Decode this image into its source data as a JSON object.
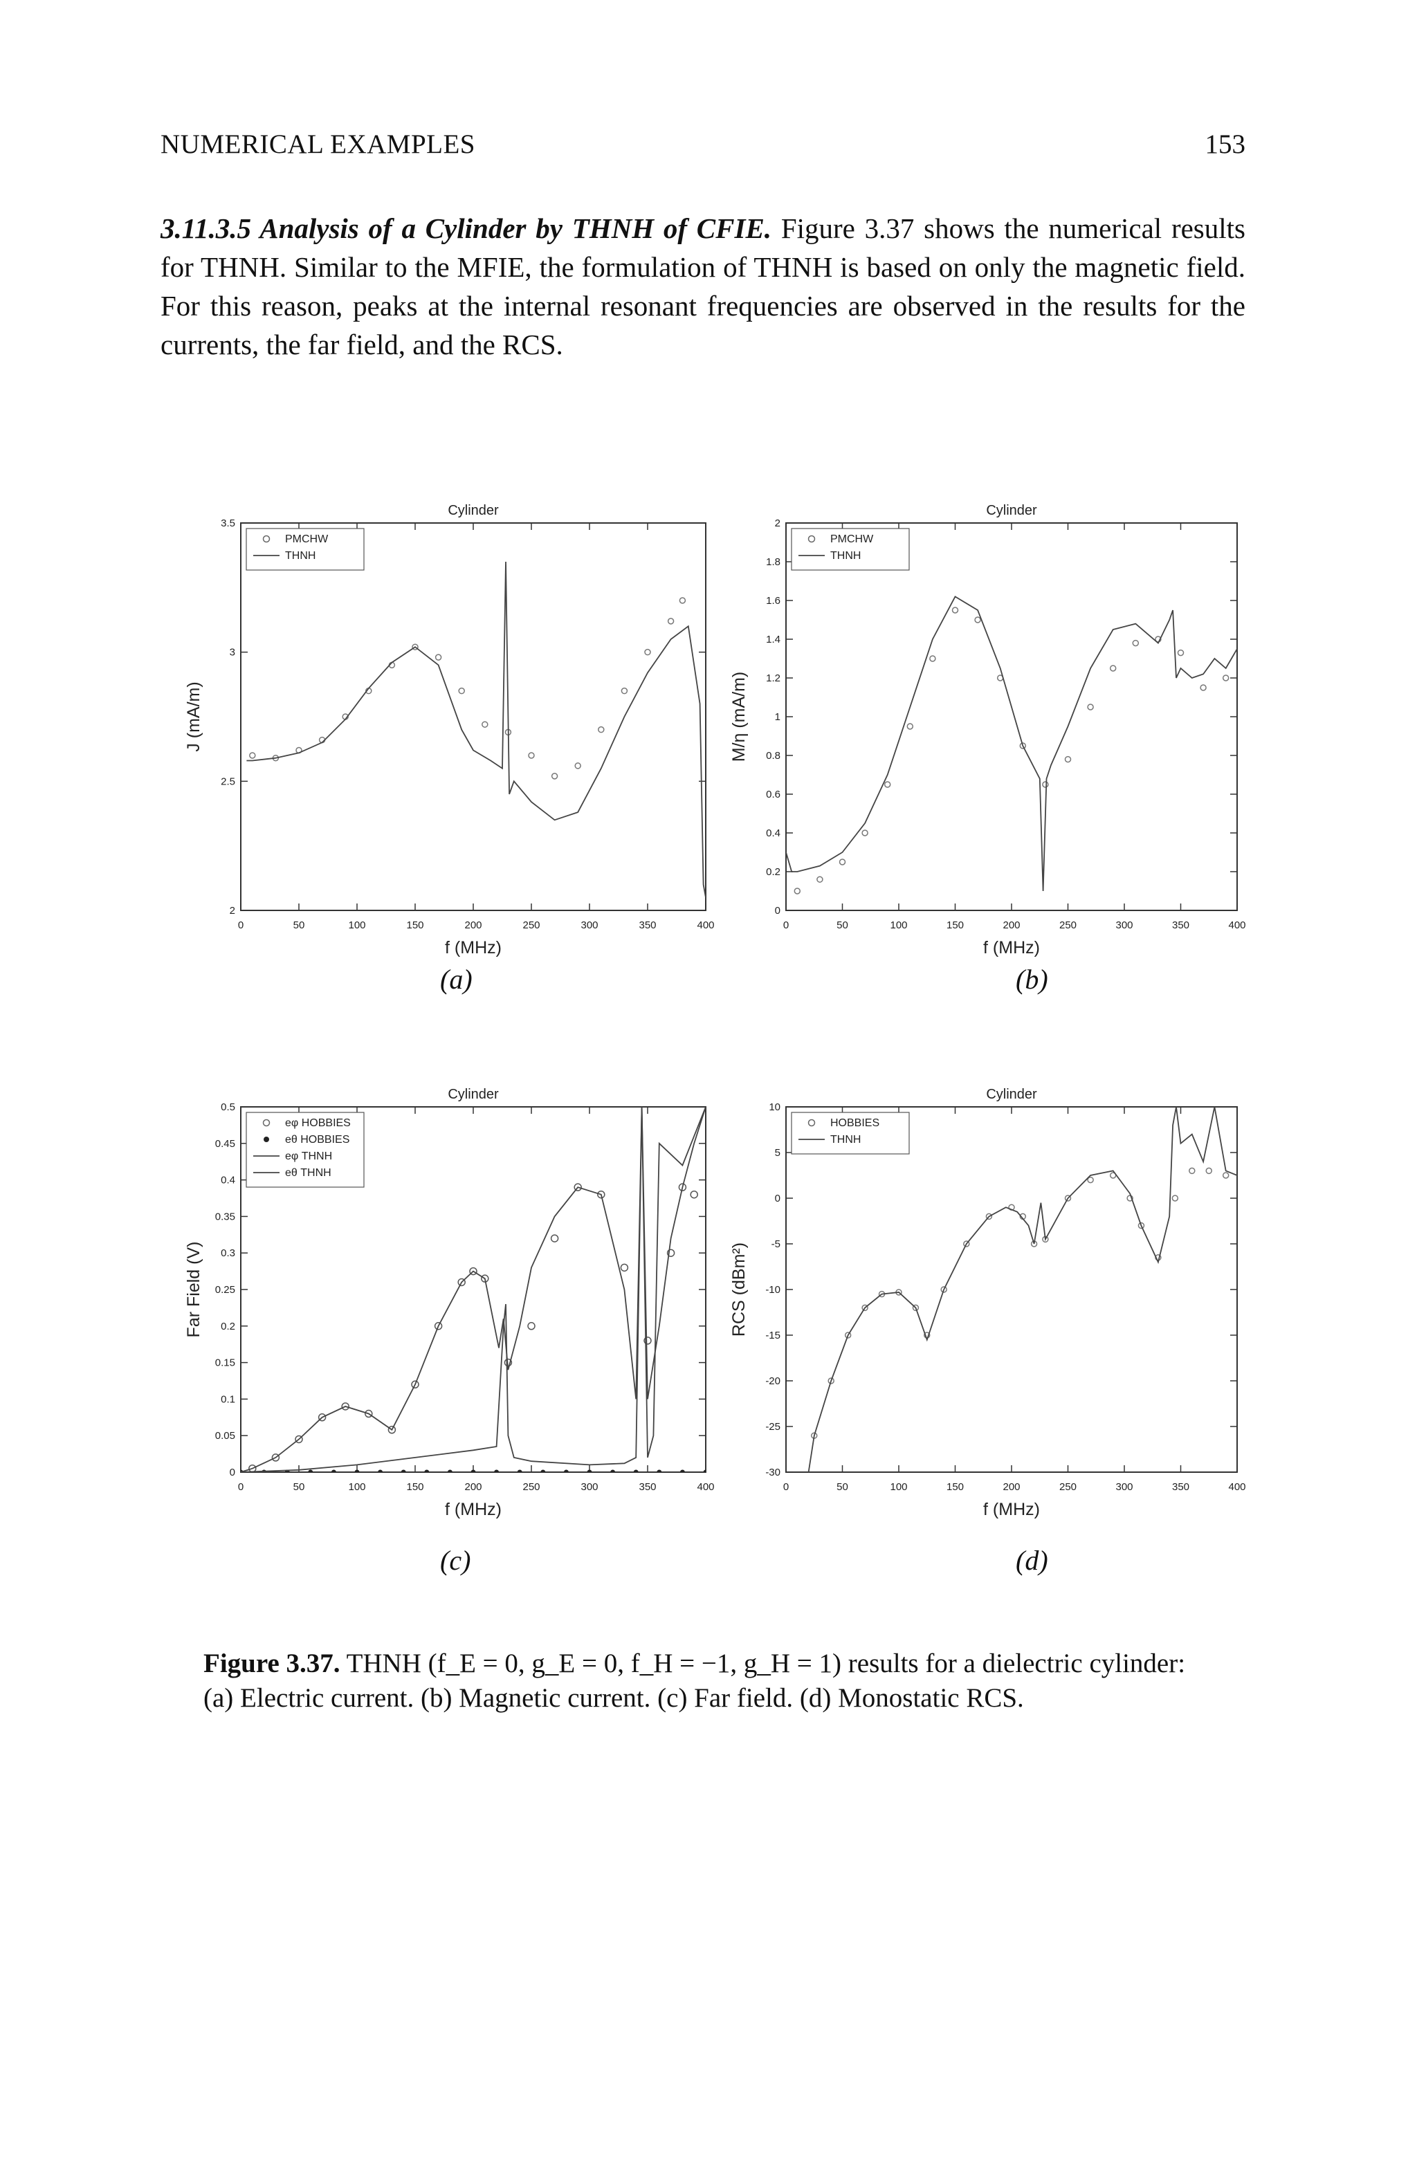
{
  "header": {
    "left": "NUMERICAL EXAMPLES",
    "page_number": "153"
  },
  "section": {
    "heading": "3.11.3.5 Analysis of a Cylinder by THNH of CFIE.",
    "body": "Figure 3.37 shows the numerical results for THNH. Similar to the MFIE, the formulation of THNH is based on only the magnetic field. For this reason, peaks at the internal resonant frequencies are observed in the results for the currents, the far field, and the RCS."
  },
  "panel_labels": {
    "a": "(a)",
    "b": "(b)",
    "c": "(c)",
    "d": "(d)"
  },
  "caption": {
    "label": "Figure 3.37.",
    "text": "THNH (f_E = 0, g_E = 0, f_H = −1, g_H = 1) results for a dielectric cylinder: (a) Electric current. (b) Magnetic current. (c) Far field. (d) Monostatic RCS."
  },
  "chart_data": [
    {
      "type": "line",
      "panel": "a",
      "title": "Cylinder",
      "xlabel": "f (MHz)",
      "ylabel": "J (mA/m)",
      "xlim": [
        0,
        400
      ],
      "ylim": [
        2,
        3.5
      ],
      "xticks": [
        "0",
        "50",
        "100",
        "150",
        "200",
        "250",
        "300",
        "350",
        "400"
      ],
      "yticks": [
        "2",
        "2.5",
        "3",
        "3.5"
      ],
      "legend": [
        "PMCHW",
        "THNH"
      ],
      "legend_position": "top-left",
      "series": [
        {
          "name": "PMCHW",
          "style": "markers",
          "x": [
            10,
            30,
            50,
            70,
            90,
            110,
            130,
            150,
            170,
            190,
            210,
            230,
            250,
            270,
            290,
            310,
            330,
            350,
            370,
            380
          ],
          "y": [
            2.6,
            2.59,
            2.62,
            2.66,
            2.75,
            2.85,
            2.95,
            3.02,
            2.98,
            2.85,
            2.72,
            2.69,
            2.6,
            2.52,
            2.56,
            2.7,
            2.85,
            3.0,
            3.12,
            3.2
          ]
        },
        {
          "name": "THNH",
          "style": "line",
          "x": [
            5,
            10,
            30,
            50,
            70,
            90,
            110,
            130,
            150,
            170,
            190,
            200,
            215,
            225,
            228,
            231,
            235,
            250,
            270,
            290,
            310,
            330,
            350,
            370,
            385,
            395,
            398,
            400
          ],
          "y": [
            2.58,
            2.58,
            2.59,
            2.61,
            2.65,
            2.74,
            2.86,
            2.96,
            3.02,
            2.95,
            2.7,
            2.62,
            2.58,
            2.55,
            3.35,
            2.45,
            2.5,
            2.42,
            2.35,
            2.38,
            2.55,
            2.75,
            2.92,
            3.05,
            3.1,
            2.8,
            2.1,
            2.05
          ]
        }
      ]
    },
    {
      "type": "line",
      "panel": "b",
      "title": "Cylinder",
      "xlabel": "f (MHz)",
      "ylabel": "M/η (mA/m)",
      "xlim": [
        0,
        400
      ],
      "ylim": [
        0,
        2
      ],
      "xticks": [
        "0",
        "50",
        "100",
        "150",
        "200",
        "250",
        "300",
        "350",
        "400"
      ],
      "yticks": [
        "0",
        "0.2",
        "0.4",
        "0.6",
        "0.8",
        "1",
        "1.2",
        "1.4",
        "1.6",
        "1.8",
        "2"
      ],
      "legend": [
        "PMCHW",
        "THNH"
      ],
      "legend_position": "top-left",
      "series": [
        {
          "name": "PMCHW",
          "style": "markers",
          "x": [
            10,
            30,
            50,
            70,
            90,
            110,
            130,
            150,
            170,
            190,
            210,
            230,
            250,
            270,
            290,
            310,
            330,
            350,
            370,
            390
          ],
          "y": [
            0.1,
            0.16,
            0.25,
            0.4,
            0.65,
            0.95,
            1.3,
            1.55,
            1.5,
            1.2,
            0.85,
            0.65,
            0.78,
            1.05,
            1.25,
            1.38,
            1.4,
            1.33,
            1.15,
            1.2
          ]
        },
        {
          "name": "THNH",
          "style": "line",
          "x": [
            0,
            5,
            10,
            30,
            50,
            70,
            90,
            110,
            130,
            150,
            170,
            190,
            210,
            225,
            228,
            231,
            235,
            250,
            270,
            290,
            310,
            330,
            340,
            343,
            346,
            350,
            360,
            370,
            380,
            390,
            400
          ],
          "y": [
            0.3,
            0.2,
            0.2,
            0.23,
            0.3,
            0.45,
            0.7,
            1.05,
            1.4,
            1.62,
            1.55,
            1.25,
            0.85,
            0.68,
            0.1,
            0.68,
            0.75,
            0.95,
            1.25,
            1.45,
            1.48,
            1.38,
            1.5,
            1.55,
            1.2,
            1.25,
            1.2,
            1.22,
            1.3,
            1.25,
            1.35
          ]
        }
      ]
    },
    {
      "type": "line",
      "panel": "c",
      "title": "Cylinder",
      "xlabel": "f (MHz)",
      "ylabel": "Far Field (V)",
      "xlim": [
        0,
        400
      ],
      "ylim": [
        0,
        0.5
      ],
      "xticks": [
        "0",
        "50",
        "100",
        "150",
        "200",
        "250",
        "300",
        "350",
        "400"
      ],
      "yticks": [
        "0",
        "0.05",
        "0.1",
        "0.15",
        "0.2",
        "0.25",
        "0.3",
        "0.35",
        "0.4",
        "0.45",
        "0.5"
      ],
      "legend": [
        "eφ HOBBIES",
        "eθ HOBBIES",
        "eφ THNH",
        "eθ THNH"
      ],
      "legend_position": "top-left",
      "series": [
        {
          "name": "eφ HOBBIES",
          "style": "open-circles",
          "x": [
            10,
            30,
            50,
            70,
            90,
            110,
            130,
            150,
            170,
            190,
            200,
            210,
            230,
            250,
            270,
            290,
            310,
            330,
            350,
            370,
            380,
            390
          ],
          "y": [
            0.005,
            0.02,
            0.045,
            0.075,
            0.09,
            0.08,
            0.058,
            0.12,
            0.2,
            0.26,
            0.275,
            0.265,
            0.15,
            0.2,
            0.32,
            0.39,
            0.38,
            0.28,
            0.18,
            0.3,
            0.39,
            0.38
          ]
        },
        {
          "name": "eθ HOBBIES",
          "style": "filled-dots",
          "x": [
            0,
            20,
            40,
            60,
            80,
            100,
            120,
            140,
            160,
            180,
            200,
            220,
            240,
            260,
            280,
            300,
            320,
            340,
            360,
            380,
            400
          ],
          "y": [
            0,
            0,
            0,
            0,
            0,
            0,
            0,
            0,
            0,
            0,
            0,
            0,
            0,
            0,
            0,
            0,
            0,
            0,
            0,
            0,
            0
          ]
        },
        {
          "name": "eφ THNH",
          "style": "line",
          "x": [
            0,
            10,
            30,
            50,
            70,
            90,
            110,
            130,
            150,
            170,
            190,
            200,
            210,
            222,
            226,
            230,
            240,
            250,
            270,
            290,
            310,
            330,
            340,
            345,
            350,
            360,
            370,
            380,
            390,
            400
          ],
          "y": [
            0,
            0.005,
            0.02,
            0.045,
            0.075,
            0.09,
            0.08,
            0.058,
            0.12,
            0.2,
            0.26,
            0.275,
            0.265,
            0.17,
            0.21,
            0.14,
            0.2,
            0.28,
            0.35,
            0.39,
            0.38,
            0.25,
            0.1,
            0.5,
            0.1,
            0.2,
            0.32,
            0.39,
            0.45,
            0.5
          ]
        },
        {
          "name": "eθ THNH",
          "style": "line",
          "x": [
            0,
            50,
            100,
            150,
            200,
            220,
            226,
            228,
            230,
            235,
            250,
            300,
            330,
            340,
            345,
            350,
            355,
            360,
            380,
            400
          ],
          "y": [
            0,
            0.003,
            0.01,
            0.02,
            0.03,
            0.035,
            0.2,
            0.23,
            0.05,
            0.02,
            0.015,
            0.01,
            0.012,
            0.02,
            0.5,
            0.02,
            0.05,
            0.45,
            0.42,
            0.5
          ]
        }
      ]
    },
    {
      "type": "line",
      "panel": "d",
      "title": "Cylinder",
      "xlabel": "f (MHz)",
      "ylabel": "RCS (dBm²)",
      "xlim": [
        0,
        400
      ],
      "ylim": [
        -30,
        10
      ],
      "xticks": [
        "0",
        "50",
        "100",
        "150",
        "200",
        "250",
        "300",
        "350",
        "400"
      ],
      "yticks": [
        "-30",
        "-25",
        "-20",
        "-15",
        "-10",
        "-5",
        "0",
        "5",
        "10"
      ],
      "legend": [
        "HOBBIES",
        "THNH"
      ],
      "legend_position": "top-left",
      "series": [
        {
          "name": "HOBBIES",
          "style": "markers",
          "x": [
            25,
            40,
            55,
            70,
            85,
            100,
            115,
            125,
            140,
            160,
            180,
            200,
            210,
            220,
            230,
            250,
            270,
            290,
            305,
            315,
            330,
            345,
            360,
            375,
            390
          ],
          "y": [
            -26,
            -20,
            -15,
            -12,
            -10.5,
            -10.3,
            -12,
            -15,
            -10,
            -5,
            -2,
            -1,
            -2,
            -5,
            -4.5,
            0,
            2,
            2.5,
            0,
            -3,
            -6.5,
            0,
            3,
            3,
            2.5
          ]
        },
        {
          "name": "THNH",
          "style": "line",
          "x": [
            20,
            25,
            40,
            55,
            70,
            85,
            100,
            115,
            125,
            140,
            160,
            180,
            195,
            205,
            215,
            220,
            226,
            230,
            250,
            270,
            290,
            305,
            315,
            330,
            340,
            343,
            346,
            350,
            360,
            370,
            380,
            390,
            400
          ],
          "y": [
            -30,
            -26,
            -20,
            -15,
            -12,
            -10.5,
            -10.3,
            -12,
            -15.5,
            -10,
            -5,
            -2,
            -1,
            -1.5,
            -3,
            -5,
            -0.5,
            -4.5,
            0,
            2.5,
            3,
            0.5,
            -3,
            -7,
            -2,
            8,
            10,
            6,
            7,
            4,
            10,
            3,
            2.5
          ]
        }
      ]
    }
  ]
}
